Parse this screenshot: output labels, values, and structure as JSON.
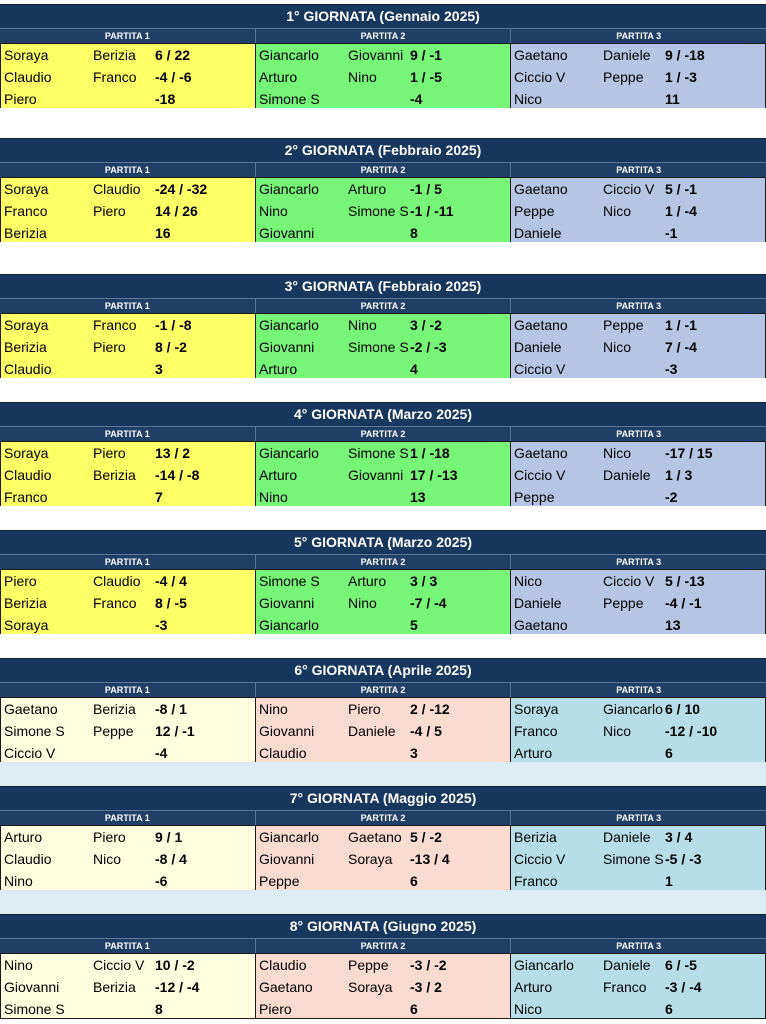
{
  "colors": {
    "header": "#17375e",
    "p1_a": "#ffff66",
    "p2_a": "#77f577",
    "p3_a": "#b4c6e3",
    "p1_b": "#ffffe0",
    "p2_b": "#f9dccf",
    "p3_b": "#b7dee8",
    "gap_a": "#ffffff",
    "gap_b": "#dcedf3"
  },
  "giornate": [
    {
      "title": "1° GIORNATA (Gennaio 2025)",
      "theme": "a",
      "partite": [
        {
          "label": "PARTITA 1",
          "rows": [
            [
              "Soraya",
              "Berizia",
              "6 / 22"
            ],
            [
              "Claudio",
              "Franco",
              "-4 / -6"
            ],
            [
              "Piero",
              "",
              "-18"
            ]
          ]
        },
        {
          "label": "PARTITA 2",
          "rows": [
            [
              "Giancarlo",
              "Giovanni",
              "9 / -1"
            ],
            [
              "Arturo",
              "Nino",
              "1 / -5"
            ],
            [
              "Simone S",
              "",
              "-4"
            ]
          ]
        },
        {
          "label": "PARTITA 3",
          "rows": [
            [
              "Gaetano",
              "Daniele",
              "9 / -18"
            ],
            [
              "Ciccio V",
              "Peppe",
              "1 / -3"
            ],
            [
              "Nico",
              "",
              "11"
            ]
          ]
        }
      ]
    },
    {
      "title": "2° GIORNATA (Febbraio 2025)",
      "theme": "a",
      "partite": [
        {
          "label": "PARTITA 1",
          "rows": [
            [
              "Soraya",
              "Claudio",
              "-24 / -32"
            ],
            [
              "Franco",
              "Piero",
              "14 / 26"
            ],
            [
              "Berizia",
              "",
              "16"
            ]
          ]
        },
        {
          "label": "PARTITA 2",
          "rows": [
            [
              "Giancarlo",
              "Arturo",
              "-1 / 5"
            ],
            [
              "Nino",
              "Simone S",
              "-1 / -11"
            ],
            [
              "Giovanni",
              "",
              "8"
            ]
          ]
        },
        {
          "label": "PARTITA 3",
          "rows": [
            [
              "Gaetano",
              "Ciccio V",
              "5 / -1"
            ],
            [
              "Peppe",
              "Nico",
              "1 / -4"
            ],
            [
              "Daniele",
              "",
              "-1"
            ]
          ]
        }
      ]
    },
    {
      "title": "3° GIORNATA (Febbraio 2025)",
      "theme": "a",
      "partite": [
        {
          "label": "PARTITA 1",
          "rows": [
            [
              "Soraya",
              "Franco",
              "-1 / -8"
            ],
            [
              "Berizia",
              "Piero",
              "8 / -2"
            ],
            [
              "Claudio",
              "",
              "3"
            ]
          ]
        },
        {
          "label": "PARTITA 2",
          "rows": [
            [
              "Giancarlo",
              "Nino",
              "3 / -2"
            ],
            [
              "Giovanni",
              "Simone S",
              "-2 / -3"
            ],
            [
              "Arturo",
              "",
              "4"
            ]
          ]
        },
        {
          "label": "PARTITA 3",
          "rows": [
            [
              "Gaetano",
              "Peppe",
              "1 / -1"
            ],
            [
              "Daniele",
              "Nico",
              "7 / -4"
            ],
            [
              "Ciccio V",
              "",
              "-3"
            ]
          ]
        }
      ]
    },
    {
      "title": "4° GIORNATA (Marzo 2025)",
      "theme": "a",
      "partite": [
        {
          "label": "PARTITA 1",
          "rows": [
            [
              "Soraya",
              "Piero",
              "13 / 2"
            ],
            [
              "Claudio",
              "Berizia",
              "-14 / -8"
            ],
            [
              "Franco",
              "",
              "7"
            ]
          ]
        },
        {
          "label": "PARTITA 2",
          "rows": [
            [
              "Giancarlo",
              "Simone S",
              "1 / -18"
            ],
            [
              "Arturo",
              "Giovanni",
              "17 / -13"
            ],
            [
              "Nino",
              "",
              "13"
            ]
          ]
        },
        {
          "label": "PARTITA 3",
          "rows": [
            [
              "Gaetano",
              "Nico",
              "-17 / 15"
            ],
            [
              "Ciccio V",
              "Daniele",
              "1 / 3"
            ],
            [
              "Peppe",
              "",
              "-2"
            ]
          ]
        }
      ]
    },
    {
      "title": "5° GIORNATA (Marzo 2025)",
      "theme": "a",
      "partite": [
        {
          "label": "PARTITA 1",
          "rows": [
            [
              "Piero",
              "Claudio",
              "-4 / 4"
            ],
            [
              "Berizia",
              "Franco",
              "8 / -5"
            ],
            [
              "Soraya",
              "",
              "-3"
            ]
          ]
        },
        {
          "label": "PARTITA 2",
          "rows": [
            [
              "Simone S",
              "Arturo",
              "3 / 3"
            ],
            [
              "Giovanni",
              "Nino",
              "-7 / -4"
            ],
            [
              "Giancarlo",
              "",
              "5"
            ]
          ]
        },
        {
          "label": "PARTITA 3",
          "rows": [
            [
              "Nico",
              "Ciccio V",
              "5 / -13"
            ],
            [
              "Daniele",
              "Peppe",
              "-4 / -1"
            ],
            [
              "Gaetano",
              "",
              "13"
            ]
          ]
        }
      ]
    },
    {
      "title": "6° GIORNATA (Aprile 2025)",
      "theme": "b",
      "partite": [
        {
          "label": "PARTITA 1",
          "rows": [
            [
              "Gaetano",
              "Berizia",
              "-8 / 1"
            ],
            [
              "Simone S",
              "Peppe",
              "12 / -1"
            ],
            [
              "Ciccio V",
              "",
              "-4"
            ]
          ]
        },
        {
          "label": "PARTITA 2",
          "rows": [
            [
              "Nino",
              "Piero",
              "2 / -12"
            ],
            [
              "Giovanni",
              "Daniele",
              "-4 / 5"
            ],
            [
              "Claudio",
              "",
              "3"
            ]
          ]
        },
        {
          "label": "PARTITA 3",
          "rows": [
            [
              "Soraya",
              "Giancarlo",
              "6 / 10"
            ],
            [
              "Franco",
              "Nico",
              "-12 / -10"
            ],
            [
              "Arturo",
              "",
              "6"
            ]
          ]
        }
      ]
    },
    {
      "title": "7° GIORNATA (Maggio 2025)",
      "theme": "b",
      "partite": [
        {
          "label": "PARTITA 1",
          "rows": [
            [
              "Arturo",
              "Piero",
              "9 / 1"
            ],
            [
              "Claudio",
              "Nico",
              "-8 / 4"
            ],
            [
              "Nino",
              "",
              "-6"
            ]
          ]
        },
        {
          "label": "PARTITA 2",
          "rows": [
            [
              "Giancarlo",
              "Gaetano",
              "5 / -2"
            ],
            [
              "Giovanni",
              "Soraya",
              "-13 / 4"
            ],
            [
              "Peppe",
              "",
              "6"
            ]
          ]
        },
        {
          "label": "PARTITA 3",
          "rows": [
            [
              "Berizia",
              "Daniele",
              "3 / 4"
            ],
            [
              "Ciccio V",
              "Simone S",
              "-5 / -3"
            ],
            [
              "Franco",
              "",
              "1"
            ]
          ]
        }
      ]
    },
    {
      "title": "8° GIORNATA (Giugno 2025)",
      "theme": "b",
      "partite": [
        {
          "label": "PARTITA 1",
          "rows": [
            [
              "Nino",
              "Ciccio V",
              "10 / -2"
            ],
            [
              "Giovanni",
              "Berizia",
              "-12 / -4"
            ],
            [
              "Simone S",
              "",
              "8"
            ]
          ]
        },
        {
          "label": "PARTITA 2",
          "rows": [
            [
              "Claudio",
              "Peppe",
              "-3 / -2"
            ],
            [
              "Gaetano",
              "Soraya",
              "-3 / 2"
            ],
            [
              "Piero",
              "",
              "6"
            ]
          ]
        },
        {
          "label": "PARTITA 3",
          "rows": [
            [
              "Giancarlo",
              "Daniele",
              "6 / -5"
            ],
            [
              "Arturo",
              "Franco",
              "-3 / -4"
            ],
            [
              "Nico",
              "",
              "6"
            ]
          ]
        }
      ]
    }
  ]
}
